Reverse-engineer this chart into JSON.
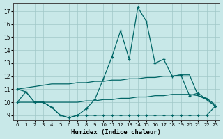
{
  "bg_color": "#c8e8e8",
  "grid_color": "#a0c8c8",
  "line_color": "#006666",
  "xlabel": "Humidex (Indice chaleur)",
  "xlim": [
    -0.5,
    23.5
  ],
  "ylim": [
    8.6,
    17.6
  ],
  "yticks": [
    9,
    10,
    11,
    12,
    13,
    14,
    15,
    16,
    17
  ],
  "xticks": [
    0,
    1,
    2,
    3,
    4,
    5,
    6,
    7,
    8,
    9,
    10,
    11,
    12,
    13,
    14,
    15,
    16,
    17,
    18,
    19,
    20,
    21,
    22,
    23
  ],
  "line1_x": [
    0,
    1,
    2,
    3,
    4,
    5,
    6,
    7,
    8,
    9,
    10,
    11,
    12,
    13,
    14,
    15,
    16,
    17,
    18,
    19,
    20,
    21,
    22,
    23
  ],
  "line1_y": [
    11.0,
    10.8,
    10.0,
    10.0,
    9.6,
    9.0,
    8.8,
    9.0,
    9.5,
    10.2,
    11.8,
    13.5,
    15.5,
    13.3,
    17.3,
    16.2,
    13.0,
    13.3,
    12.0,
    12.1,
    10.5,
    10.7,
    10.2,
    9.7
  ],
  "line2_x": [
    0,
    1,
    2,
    3,
    4,
    5,
    6,
    7,
    8,
    9,
    10,
    11,
    12,
    13,
    14,
    15,
    16,
    17,
    18,
    19,
    20,
    21,
    22,
    23
  ],
  "line2_y": [
    11.0,
    11.1,
    11.2,
    11.3,
    11.4,
    11.4,
    11.4,
    11.5,
    11.5,
    11.6,
    11.6,
    11.7,
    11.7,
    11.8,
    11.8,
    11.9,
    11.9,
    12.0,
    12.0,
    12.1,
    12.1,
    10.5,
    10.2,
    9.7
  ],
  "line3_x": [
    0,
    1,
    2,
    3,
    4,
    5,
    6,
    7,
    8,
    9,
    10,
    11,
    12,
    13,
    14,
    15,
    16,
    17,
    18,
    19,
    20,
    21,
    22,
    23
  ],
  "line3_y": [
    10.0,
    10.0,
    10.0,
    10.0,
    10.0,
    10.0,
    10.0,
    10.0,
    10.1,
    10.1,
    10.2,
    10.2,
    10.3,
    10.3,
    10.4,
    10.4,
    10.5,
    10.5,
    10.6,
    10.6,
    10.6,
    10.5,
    10.3,
    9.8
  ],
  "line4_x": [
    0,
    1,
    2,
    3,
    4,
    5,
    6,
    7,
    8,
    9,
    10,
    11,
    12,
    13,
    14,
    15,
    16,
    17,
    18,
    19,
    20,
    21,
    22,
    23
  ],
  "line4_y": [
    10.0,
    10.8,
    10.0,
    10.0,
    9.6,
    9.0,
    8.8,
    9.0,
    9.0,
    9.0,
    9.0,
    9.0,
    9.0,
    9.0,
    9.0,
    9.0,
    9.0,
    9.0,
    9.0,
    9.0,
    9.0,
    9.0,
    9.0,
    9.7
  ]
}
